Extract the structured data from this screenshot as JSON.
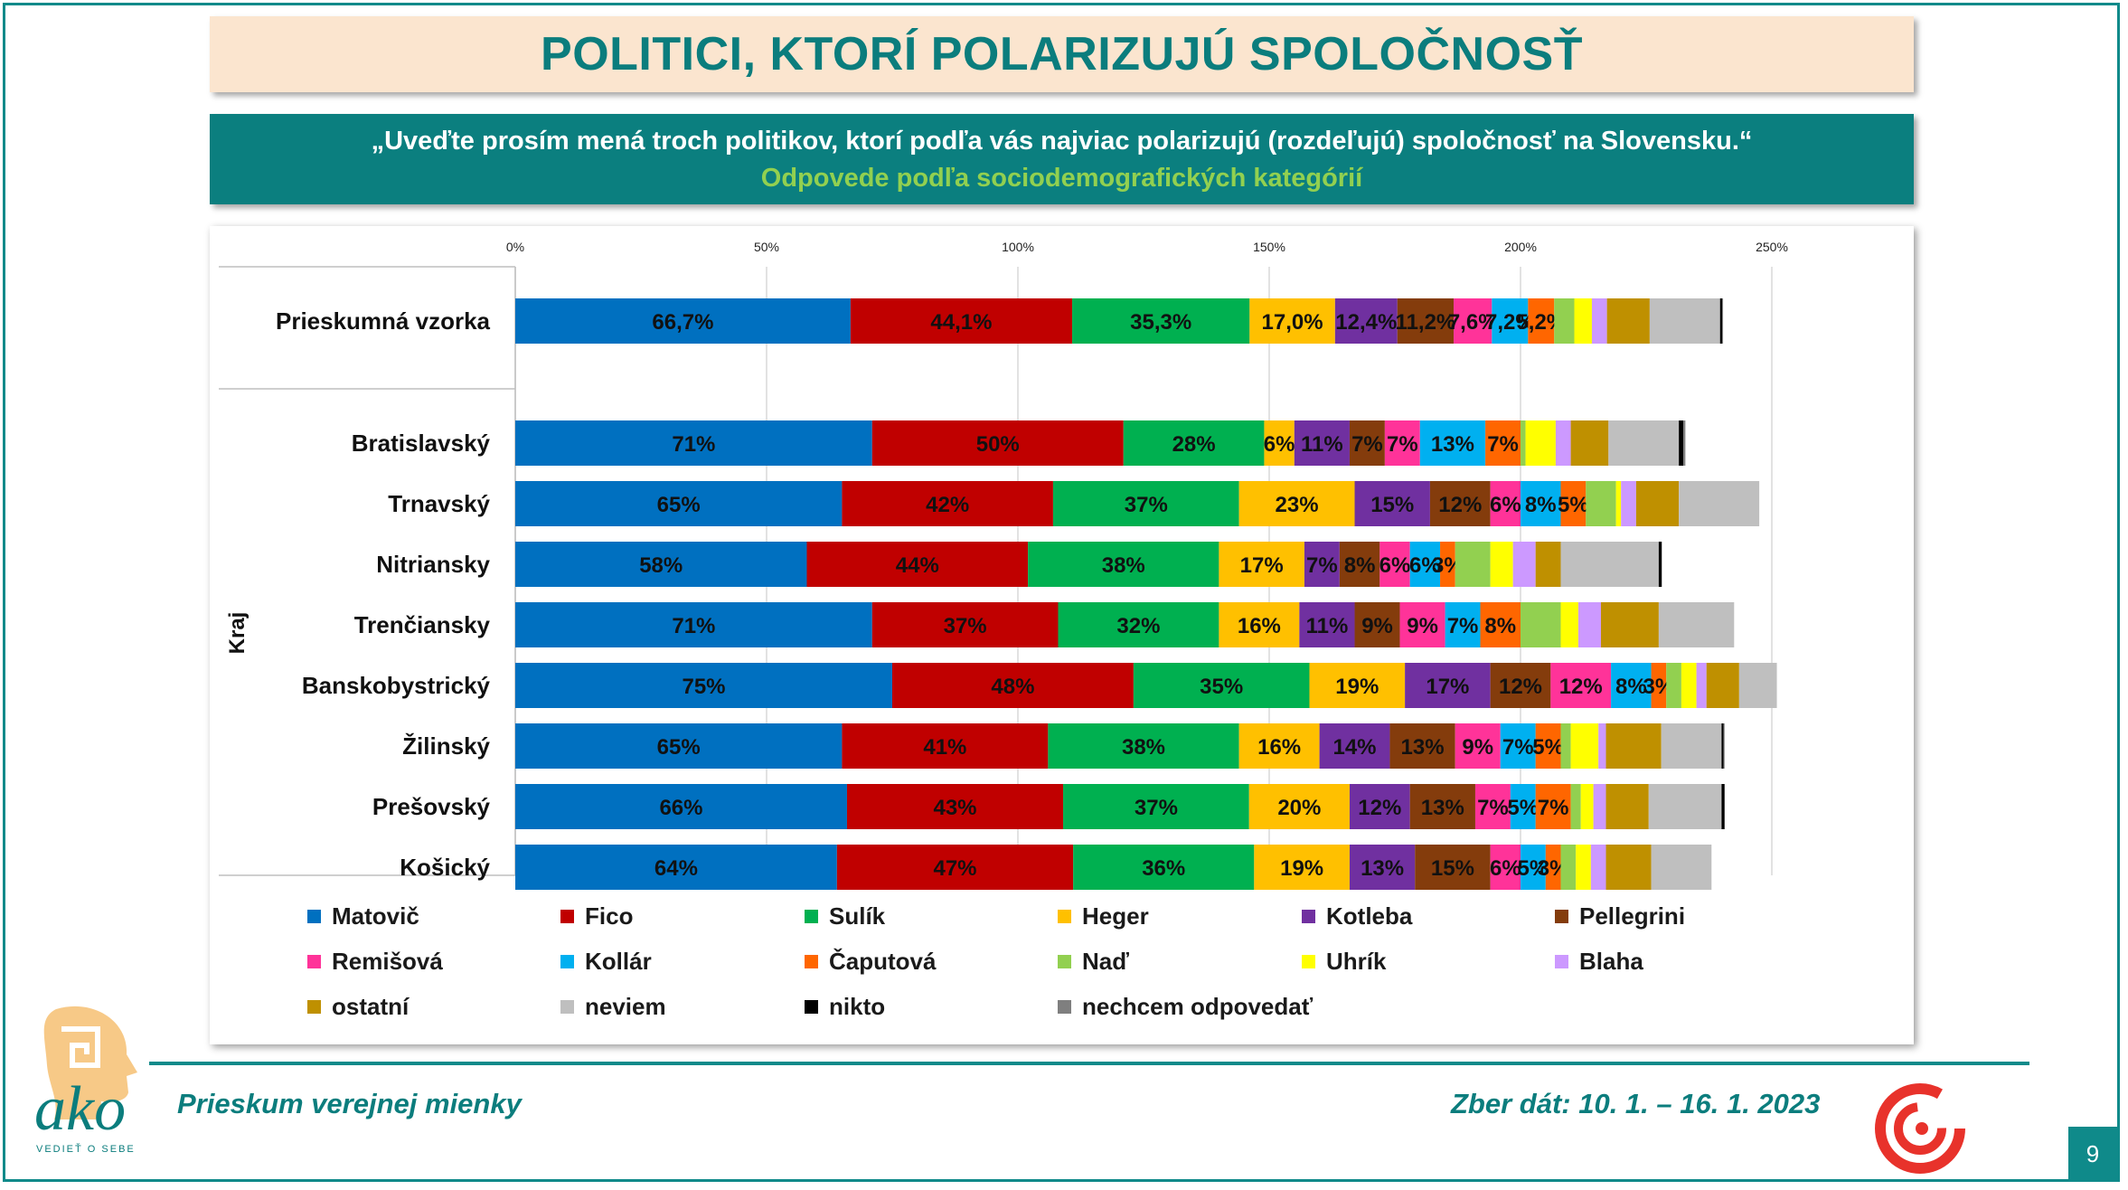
{
  "title": "POLITICI, KTORÍ POLARIZUJÚ SPOLOČNOSŤ",
  "question": "„Uveďte prosím mená troch politikov, ktorí podľa vás najviac polarizujú (rozdeľujú) spoločnosť na Slovensku.“",
  "subquestion": "Odpovede podľa sociodemografických kategórií",
  "footer": {
    "left": "Prieskum verejnej mienky",
    "right": "Zber dát: 10. 1. – 16. 1. 2023",
    "page": "9",
    "logo_text": "ako",
    "logo_sub": "VEDIEŤ O SEBE"
  },
  "chart_data": {
    "type": "bar",
    "orientation": "horizontal",
    "stacked": true,
    "xlim": [
      0,
      250
    ],
    "x_ticks": [
      "0%",
      "50%",
      "100%",
      "150%",
      "200%",
      "250%"
    ],
    "group_label": "Kraj",
    "categories": [
      "Prieskumná vzorka",
      "Bratislavský",
      "Trnavský",
      "Nitriansky",
      "Trenčiansky",
      "Banskobystrický",
      "Žilinský",
      "Prešovský",
      "Košický"
    ],
    "series": [
      {
        "name": "Matovič",
        "color": "#0070c0",
        "values": [
          66.7,
          71,
          65,
          58,
          71,
          75,
          65,
          66,
          64
        ],
        "labels": [
          "66,7%",
          "71%",
          "65%",
          "58%",
          "71%",
          "75%",
          "65%",
          "66%",
          "64%"
        ]
      },
      {
        "name": "Fico",
        "color": "#c00000",
        "values": [
          44.1,
          50,
          42,
          44,
          37,
          48,
          41,
          43,
          47
        ],
        "labels": [
          "44,1%",
          "50%",
          "42%",
          "44%",
          "37%",
          "48%",
          "41%",
          "43%",
          "47%"
        ]
      },
      {
        "name": "Sulík",
        "color": "#00b050",
        "values": [
          35.3,
          28,
          37,
          38,
          32,
          35,
          38,
          37,
          36
        ],
        "labels": [
          "35,3%",
          "28%",
          "37%",
          "38%",
          "32%",
          "35%",
          "38%",
          "37%",
          "36%"
        ]
      },
      {
        "name": "Heger",
        "color": "#ffc000",
        "values": [
          17.0,
          6,
          23,
          17,
          16,
          19,
          16,
          20,
          19
        ],
        "labels": [
          "17,0%",
          "6%",
          "23%",
          "17%",
          "16%",
          "19%",
          "16%",
          "20%",
          "19%"
        ]
      },
      {
        "name": "Kotleba",
        "color": "#7030a0",
        "values": [
          12.4,
          11,
          15,
          7,
          11,
          17,
          14,
          12,
          13
        ],
        "labels": [
          "12,4%",
          "11%",
          "15%",
          "7%",
          "11%",
          "17%",
          "14%",
          "12%",
          "13%"
        ]
      },
      {
        "name": "Pellegrini",
        "color": "#843c0c",
        "values": [
          11.2,
          7,
          12,
          8,
          9,
          12,
          13,
          13,
          15
        ],
        "labels": [
          "11,2%",
          "7%",
          "12%",
          "8%",
          "9%",
          "12%",
          "13%",
          "13%",
          "15%"
        ]
      },
      {
        "name": "Remišová",
        "color": "#ff3399",
        "values": [
          7.6,
          7,
          6,
          6,
          9,
          12,
          9,
          7,
          6
        ],
        "labels": [
          "7,6%",
          "7%",
          "6%",
          "6%",
          "9%",
          "12%",
          "9%",
          "7%",
          "6%"
        ]
      },
      {
        "name": "Kollár",
        "color": "#00b0f0",
        "values": [
          7.2,
          13,
          8,
          6,
          7,
          8,
          7,
          5,
          5
        ],
        "labels": [
          "7,2%",
          "13%",
          "8%",
          "6%",
          "7%",
          "8%",
          "7%",
          "5%",
          "5%"
        ]
      },
      {
        "name": "Čaputová",
        "color": "#ff6600",
        "values": [
          5.2,
          7,
          5,
          3,
          8,
          3,
          5,
          7,
          3
        ],
        "labels": [
          "5,2%",
          "7%",
          "5%",
          "3%",
          "8%",
          "3%",
          "5%",
          "7%",
          "3%"
        ]
      },
      {
        "name": "Naď",
        "color": "#92d050",
        "values": [
          4,
          1,
          6,
          7,
          8,
          3,
          2,
          2,
          3
        ],
        "labels": [
          "",
          "",
          "",
          "",
          "",
          "",
          "",
          "",
          ""
        ]
      },
      {
        "name": "Uhrík",
        "color": "#ffff00",
        "values": [
          3.5,
          6,
          1,
          4.5,
          3.5,
          3,
          5.5,
          2.5,
          3
        ],
        "labels": [
          "",
          "",
          "",
          "",
          "",
          "",
          "",
          "",
          ""
        ]
      },
      {
        "name": "Blaha",
        "color": "#cc99ff",
        "values": [
          3,
          3,
          3,
          4.5,
          4.5,
          2,
          1.5,
          2.5,
          3
        ],
        "labels": [
          "",
          "",
          "",
          "",
          "",
          "",
          "",
          "",
          ""
        ]
      },
      {
        "name": "ostatní",
        "color": "#bf9000",
        "values": [
          8.5,
          7.5,
          8.5,
          5,
          11.5,
          6.5,
          11,
          8.5,
          9
        ],
        "labels": [
          "",
          "",
          "",
          "",
          "",
          "",
          "",
          "",
          ""
        ]
      },
      {
        "name": "neviem",
        "color": "#bfbfbf",
        "values": [
          14,
          14,
          16,
          19.5,
          15,
          7.5,
          12,
          14.5,
          12
        ],
        "labels": [
          "",
          "",
          "",
          "",
          "",
          "",
          "",
          "",
          ""
        ]
      },
      {
        "name": "nikto",
        "color": "#000000",
        "values": [
          0.4,
          0.9,
          0,
          0.6,
          0,
          0,
          0.4,
          0.6,
          0
        ],
        "labels": [
          "",
          "",
          "",
          "",
          "",
          "",
          "",
          "",
          ""
        ]
      },
      {
        "name": "nechcem odpovedať",
        "color": "#7f7f7f",
        "values": [
          0.2,
          0.4,
          0,
          0,
          0,
          0,
          0.2,
          0,
          0
        ],
        "labels": [
          "",
          "",
          "",
          "",
          "",
          "",
          "",
          "",
          ""
        ]
      }
    ],
    "legend_position": "bottom",
    "grid": true
  }
}
